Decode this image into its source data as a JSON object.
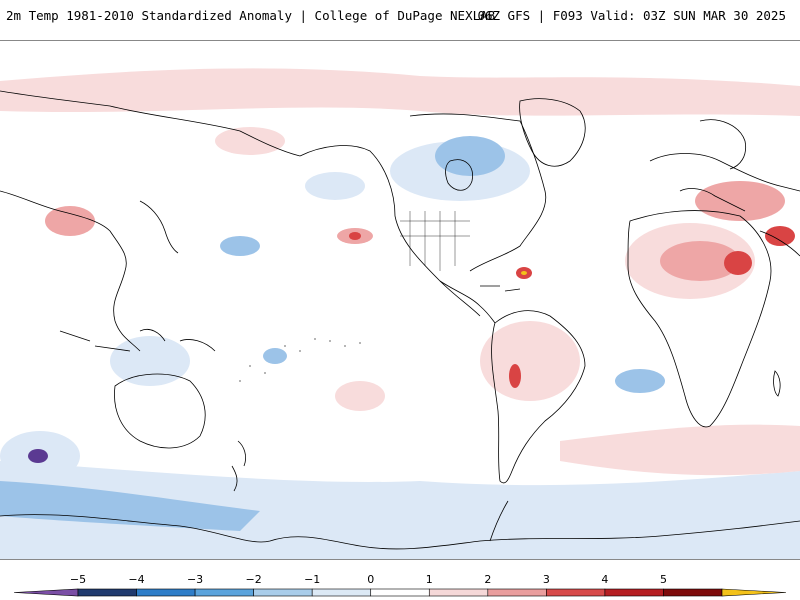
{
  "header": {
    "title": "2m Temp 1981-2010 Standardized Anomaly | College of DuPage NEXLAB",
    "valid": "06Z GFS | F093 Valid: 03Z SUN MAR 30 2025"
  },
  "colorbar": {
    "labels": [
      "-5",
      "-4",
      "-3",
      "-2",
      "-1",
      "0",
      "1",
      "2",
      "3",
      "4",
      "5"
    ],
    "colors": [
      "#7b4fa6",
      "#203a6e",
      "#2e7dc8",
      "#5aa3dc",
      "#a9cdea",
      "#dce9f5",
      "#ffffff",
      "#f5d8d8",
      "#e99e9e",
      "#d74a4a",
      "#b51e22",
      "#7d0b0b",
      "#f3c21a"
    ]
  },
  "map": {
    "projection": "equirectangular",
    "center_longitude": 180,
    "palette": {
      "ocean_background": "#ffffff",
      "warm_light": "#f8dcdc",
      "warm_mid": "#eea6a6",
      "warm_strong": "#d94444",
      "warm_extreme": "#9b1212",
      "cold_light": "#dce8f6",
      "cold_mid": "#9cc3e8",
      "cold_strong": "#4e8fd0",
      "cold_extreme": "#5b3a92",
      "coastline": "#000000"
    }
  }
}
